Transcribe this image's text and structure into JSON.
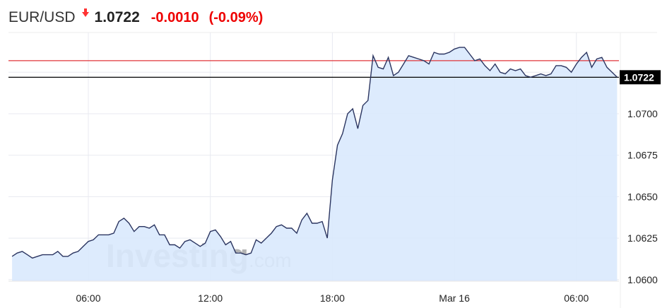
{
  "header": {
    "symbol": "EUR/USD",
    "direction_icon": "arrow-down-icon",
    "last_price": "1.0722",
    "change": "-0.0010",
    "change_percent": "(-0.09%)"
  },
  "watermark": "Investing.com",
  "colors": {
    "line": "#2b3560",
    "fill": "#d9e9fd",
    "previous_close": "#e0353a",
    "negative": "#ee0000",
    "price_badge": "#000000"
  },
  "chart_data": {
    "type": "area",
    "x_start": "02:15",
    "interval_minutes": 15,
    "x_tick_labels": [
      {
        "label": "06:00",
        "minutes": 360
      },
      {
        "label": "12:00",
        "minutes": 720
      },
      {
        "label": "18:00",
        "minutes": 1080
      },
      {
        "label": "Mar 16",
        "minutes": 1440
      },
      {
        "label": "06:00",
        "minutes": 1800
      }
    ],
    "y_ticks": [
      "1.0600",
      "1.0625",
      "1.0650",
      "1.0675",
      "1.0700",
      "1.0725"
    ],
    "y_tick_labels_shown": [
      "1.0600",
      "1.0625",
      "1.0650",
      "1.0675",
      "1.0700"
    ],
    "ylim": [
      1.06,
      1.0747
    ],
    "grid": true,
    "previous_close": 1.0732,
    "current_price_label": "1.0722",
    "values": [
      1.0614,
      1.0616,
      1.0617,
      1.0615,
      1.0613,
      1.0614,
      1.0615,
      1.0615,
      1.0615,
      1.0617,
      1.0614,
      1.0614,
      1.0616,
      1.0617,
      1.062,
      1.0623,
      1.0624,
      1.0627,
      1.0627,
      1.0627,
      1.0628,
      1.0635,
      1.0637,
      1.0634,
      1.0629,
      1.0632,
      1.0632,
      1.0631,
      1.0633,
      1.0627,
      1.0627,
      1.0621,
      1.0621,
      1.0619,
      1.0623,
      1.0624,
      1.0622,
      1.062,
      1.0622,
      1.0629,
      1.063,
      1.0626,
      1.0621,
      1.0623,
      1.0616,
      1.0616,
      1.0615,
      1.0616,
      1.0624,
      1.0622,
      1.0625,
      1.0628,
      1.0632,
      1.0633,
      1.0631,
      1.0631,
      1.0628,
      1.0636,
      1.064,
      1.0634,
      1.0634,
      1.0635,
      1.0625,
      1.066,
      1.0681,
      1.0688,
      1.07,
      1.0703,
      1.0691,
      1.0705,
      1.0708,
      1.0735,
      1.0728,
      1.0727,
      1.0734,
      1.0723,
      1.0725,
      1.073,
      1.0735,
      1.0734,
      1.0733,
      1.0732,
      1.073,
      1.0737,
      1.0736,
      1.0736,
      1.0737,
      1.0739,
      1.074,
      1.074,
      1.0736,
      1.0732,
      1.0733,
      1.0729,
      1.0726,
      1.073,
      1.0725,
      1.0724,
      1.0727,
      1.0726,
      1.0727,
      1.0723,
      1.0722,
      1.0723,
      1.0724,
      1.0723,
      1.0724,
      1.0729,
      1.0729,
      1.0728,
      1.0725,
      1.073,
      1.0734,
      1.0737,
      1.0728,
      1.0733,
      1.0734,
      1.0728,
      1.0725,
      1.0722
    ]
  }
}
